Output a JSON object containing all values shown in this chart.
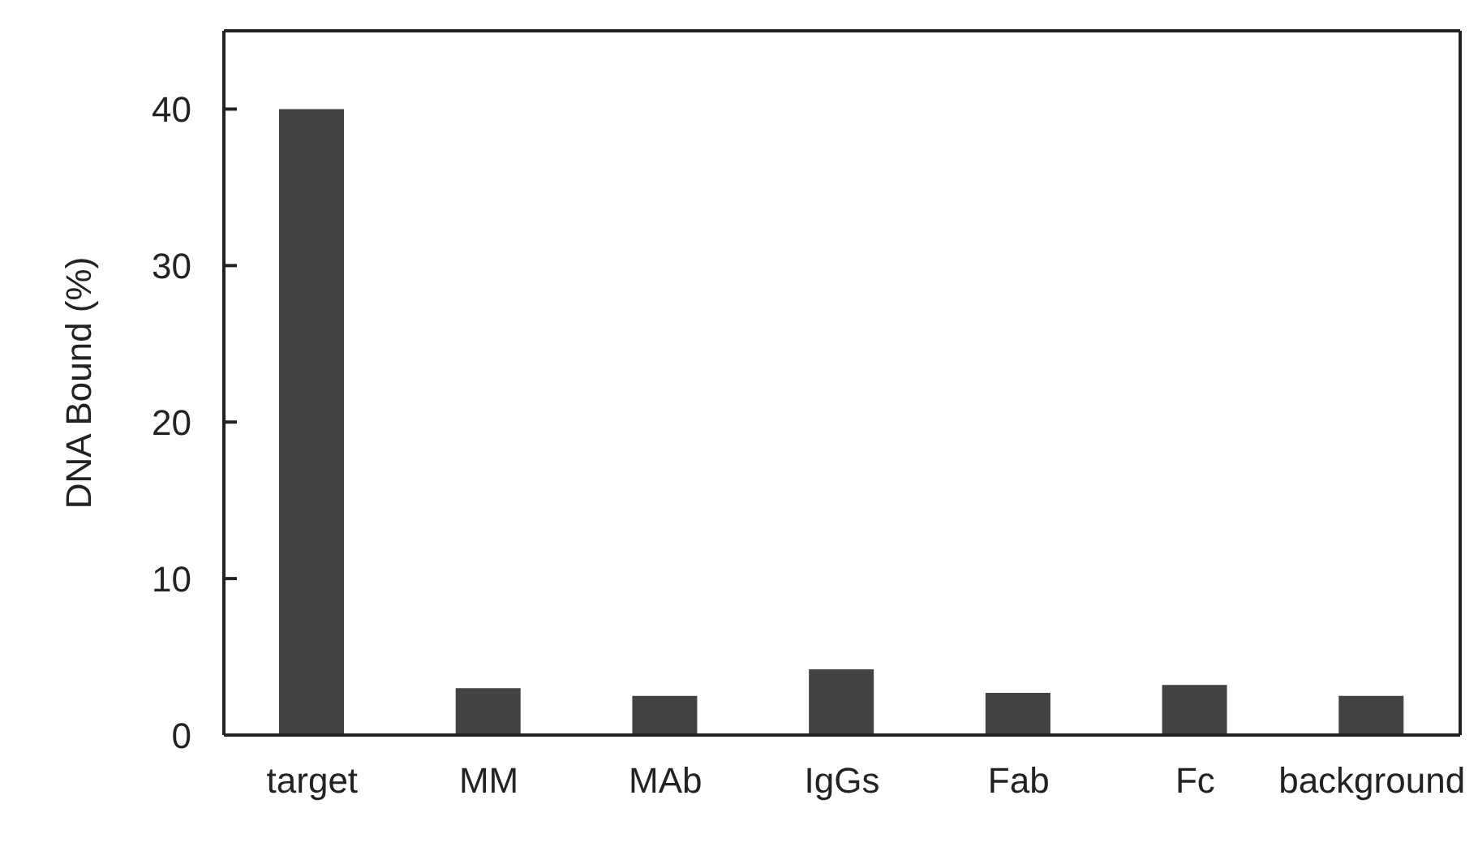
{
  "chart_data": {
    "type": "bar",
    "ylabel": "DNA Bound (%)",
    "categories": [
      "target",
      "MM",
      "MAb",
      "IgGs",
      "Fab",
      "Fc",
      "background"
    ],
    "values": [
      40,
      3.0,
      2.5,
      4.2,
      2.7,
      3.2,
      2.5
    ],
    "color": "#444142",
    "ylim": [
      0,
      45
    ],
    "yticks": [
      0,
      10,
      20,
      30,
      40
    ],
    "grid": false,
    "legend": false
  }
}
